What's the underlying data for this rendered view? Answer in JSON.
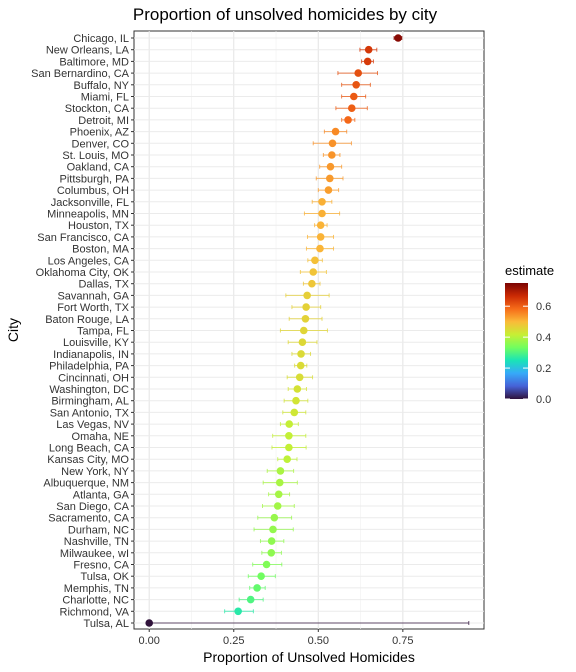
{
  "chart_data": {
    "type": "scatter",
    "title": "Proportion of unsolved homicides by city",
    "xlabel": "Proportion of Unsolved Homicides",
    "ylabel": "City",
    "xlim": [
      -0.045,
      0.99
    ],
    "xticks": [
      {
        "value": 0.0,
        "label": "0.00"
      },
      {
        "value": 0.25,
        "label": "0.25"
      },
      {
        "value": 0.5,
        "label": "0.50"
      },
      {
        "value": 0.75,
        "label": "0.75"
      }
    ],
    "grid": true,
    "legend": {
      "title": "estimate",
      "placement": "right",
      "range": [
        0.0,
        0.75
      ],
      "ticks": [
        {
          "value": 0.0,
          "label": "0.0"
        },
        {
          "value": 0.2,
          "label": "0.2"
        },
        {
          "value": 0.4,
          "label": "0.4"
        },
        {
          "value": 0.6,
          "label": "0.6"
        }
      ],
      "colormap": [
        "#30123b",
        "#4662d7",
        "#36aaf9",
        "#1ae4b6",
        "#72fe5e",
        "#c7ef34",
        "#faba39",
        "#f66b19",
        "#cb2a04",
        "#7a0403"
      ]
    },
    "points": [
      {
        "city": "Chicago, IL",
        "estimate": 0.736,
        "low": 0.724,
        "high": 0.747
      },
      {
        "city": "New Orleans, LA",
        "estimate": 0.649,
        "low": 0.623,
        "high": 0.673
      },
      {
        "city": "Baltimore, MD",
        "estimate": 0.646,
        "low": 0.628,
        "high": 0.663
      },
      {
        "city": "San Bernardino, CA",
        "estimate": 0.618,
        "low": 0.558,
        "high": 0.675
      },
      {
        "city": "Buffalo, NY",
        "estimate": 0.612,
        "low": 0.569,
        "high": 0.654
      },
      {
        "city": "Miami, FL",
        "estimate": 0.605,
        "low": 0.569,
        "high": 0.64
      },
      {
        "city": "Stockton, CA",
        "estimate": 0.599,
        "low": 0.552,
        "high": 0.645
      },
      {
        "city": "Detroit, MI",
        "estimate": 0.588,
        "low": 0.569,
        "high": 0.608
      },
      {
        "city": "Phoenix, AZ",
        "estimate": 0.551,
        "low": 0.518,
        "high": 0.584
      },
      {
        "city": "Denver, CO",
        "estimate": 0.542,
        "low": 0.485,
        "high": 0.598
      },
      {
        "city": "St. Louis, MO",
        "estimate": 0.54,
        "low": 0.515,
        "high": 0.564
      },
      {
        "city": "Oakland, CA",
        "estimate": 0.536,
        "low": 0.504,
        "high": 0.569
      },
      {
        "city": "Pittsburgh, PA",
        "estimate": 0.534,
        "low": 0.494,
        "high": 0.573
      },
      {
        "city": "Columbus, OH",
        "estimate": 0.53,
        "low": 0.5,
        "high": 0.56
      },
      {
        "city": "Jacksonville, FL",
        "estimate": 0.511,
        "low": 0.482,
        "high": 0.54
      },
      {
        "city": "Minneapolis, MN",
        "estimate": 0.511,
        "low": 0.459,
        "high": 0.563
      },
      {
        "city": "Houston, TX",
        "estimate": 0.507,
        "low": 0.489,
        "high": 0.526
      },
      {
        "city": "San Francisco, CA",
        "estimate": 0.507,
        "low": 0.468,
        "high": 0.545
      },
      {
        "city": "Boston, MA",
        "estimate": 0.505,
        "low": 0.465,
        "high": 0.545
      },
      {
        "city": "Los Angeles, CA",
        "estimate": 0.49,
        "low": 0.469,
        "high": 0.512
      },
      {
        "city": "Oklahoma City, OK",
        "estimate": 0.485,
        "low": 0.447,
        "high": 0.524
      },
      {
        "city": "Dallas, TX",
        "estimate": 0.481,
        "low": 0.456,
        "high": 0.505
      },
      {
        "city": "Savannah, GA",
        "estimate": 0.467,
        "low": 0.404,
        "high": 0.532
      },
      {
        "city": "Fort Worth, TX",
        "estimate": 0.464,
        "low": 0.422,
        "high": 0.507
      },
      {
        "city": "Baton Rouge, LA",
        "estimate": 0.462,
        "low": 0.414,
        "high": 0.511
      },
      {
        "city": "Tampa, FL",
        "estimate": 0.457,
        "low": 0.388,
        "high": 0.527
      },
      {
        "city": "Louisville, KY",
        "estimate": 0.453,
        "low": 0.411,
        "high": 0.496
      },
      {
        "city": "Indianapolis, IN",
        "estimate": 0.449,
        "low": 0.422,
        "high": 0.477
      },
      {
        "city": "Philadelphia, PA",
        "estimate": 0.448,
        "low": 0.43,
        "high": 0.466
      },
      {
        "city": "Cincinnati, OH",
        "estimate": 0.445,
        "low": 0.408,
        "high": 0.483
      },
      {
        "city": "Washington, DC",
        "estimate": 0.438,
        "low": 0.411,
        "high": 0.465
      },
      {
        "city": "Birmingham, AL",
        "estimate": 0.434,
        "low": 0.399,
        "high": 0.469
      },
      {
        "city": "San Antonio, TX",
        "estimate": 0.429,
        "low": 0.395,
        "high": 0.463
      },
      {
        "city": "Las Vegas, NV",
        "estimate": 0.414,
        "low": 0.388,
        "high": 0.441
      },
      {
        "city": "Omaha, NE",
        "estimate": 0.413,
        "low": 0.365,
        "high": 0.463
      },
      {
        "city": "Long Beach, CA",
        "estimate": 0.413,
        "low": 0.363,
        "high": 0.464
      },
      {
        "city": "Kansas City, MO",
        "estimate": 0.408,
        "low": 0.38,
        "high": 0.437
      },
      {
        "city": "New York, NY",
        "estimate": 0.388,
        "low": 0.349,
        "high": 0.427
      },
      {
        "city": "Albuquerque, NM",
        "estimate": 0.386,
        "low": 0.337,
        "high": 0.438
      },
      {
        "city": "Atlanta, GA",
        "estimate": 0.383,
        "low": 0.353,
        "high": 0.415
      },
      {
        "city": "San Diego, CA",
        "estimate": 0.38,
        "low": 0.335,
        "high": 0.429
      },
      {
        "city": "Sacramento, CA",
        "estimate": 0.37,
        "low": 0.321,
        "high": 0.421
      },
      {
        "city": "Durham, NC",
        "estimate": 0.366,
        "low": 0.31,
        "high": 0.426
      },
      {
        "city": "Nashville, TN",
        "estimate": 0.362,
        "low": 0.329,
        "high": 0.398
      },
      {
        "city": "Milwaukee, wI",
        "estimate": 0.361,
        "low": 0.333,
        "high": 0.391
      },
      {
        "city": "Fresno, CA",
        "estimate": 0.347,
        "low": 0.306,
        "high": 0.392
      },
      {
        "city": "Tulsa, OK",
        "estimate": 0.331,
        "low": 0.293,
        "high": 0.373
      },
      {
        "city": "Memphis, TN",
        "estimate": 0.319,
        "low": 0.297,
        "high": 0.343
      },
      {
        "city": "Charlotte, NC",
        "estimate": 0.3,
        "low": 0.266,
        "high": 0.337
      },
      {
        "city": "Richmond, VA",
        "estimate": 0.263,
        "low": 0.223,
        "high": 0.308
      },
      {
        "city": "Tulsa, AL",
        "estimate": 0.0,
        "low": 0.0,
        "high": 0.945
      }
    ]
  }
}
